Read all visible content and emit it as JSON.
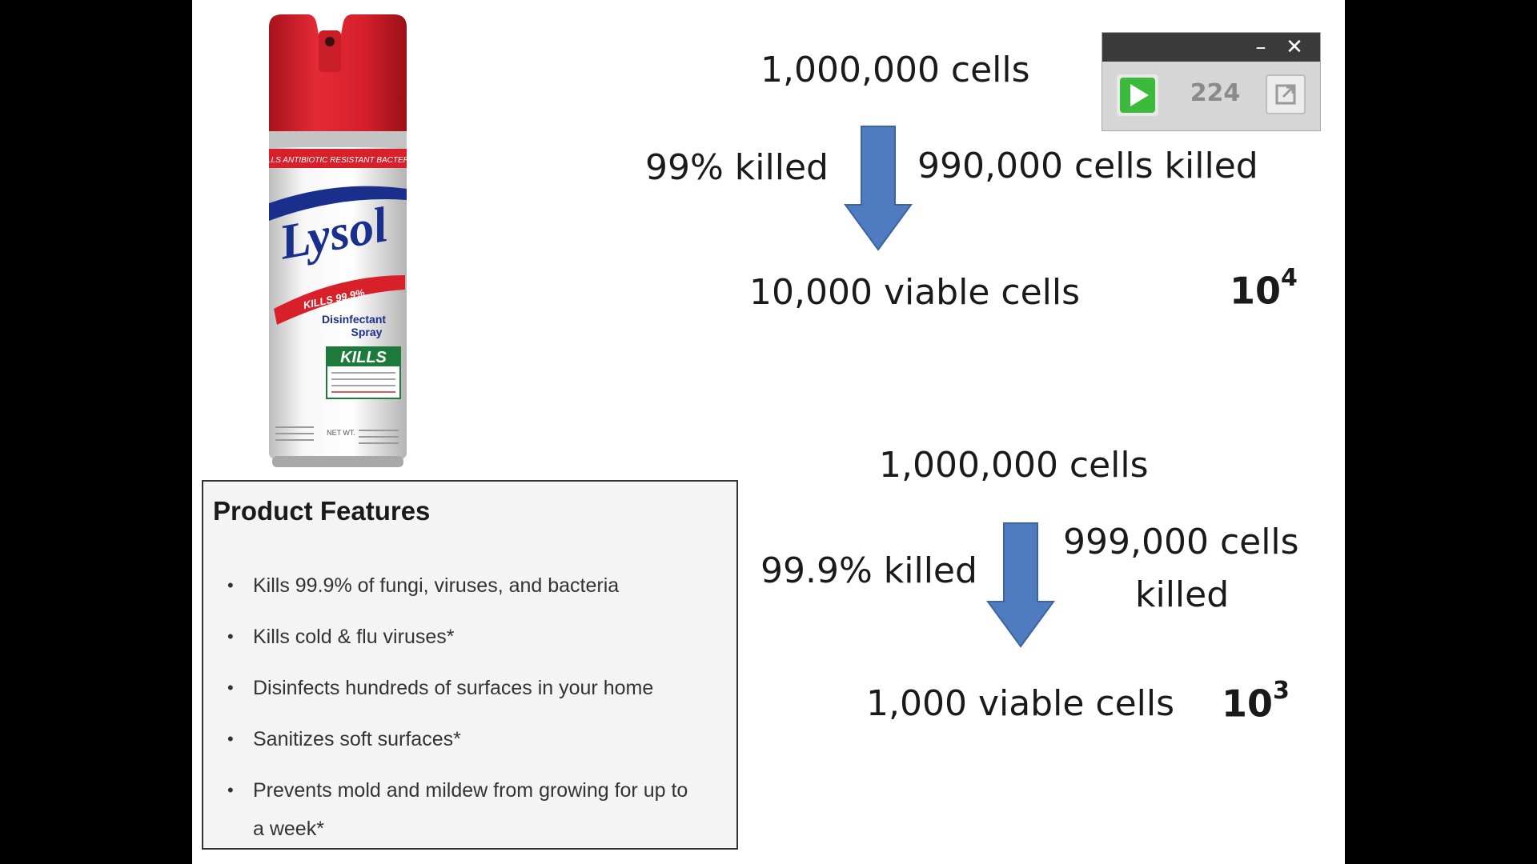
{
  "product": {
    "brand_logo": "Lysol",
    "can_band_text": "KILLS ANTIBIOTIC RESISTANT BACTERIA",
    "can_claim": "KILLS 99.9%",
    "can_product_name_line1": "Disinfectant",
    "can_product_name_line2": "Spray",
    "can_kills_label": "KILLS",
    "can_net_wt": "NET WT.",
    "colors": {
      "cap": "#d8202b",
      "logo_blue": "#1a2f8c",
      "kills_green": "#1c7a3a"
    }
  },
  "features": {
    "title": "Product Features",
    "items": [
      "Kills 99.9% of fungi, viruses, and bacteria",
      "Kills cold & flu viruses*",
      "Disinfects hundreds of surfaces in your home",
      "Sanitizes soft surfaces*",
      "Prevents mold and mildew from growing for up to a week*"
    ]
  },
  "example1": {
    "start": "1,000,000 cells",
    "kill_rate": "99% killed",
    "killed": "990,000 cells killed",
    "viable": "10,000 viable cells",
    "exp_base": "10",
    "exp_power": "4"
  },
  "example2": {
    "start": "1,000,000 cells",
    "kill_rate": "99.9% killed",
    "killed_line1": "999,000 cells",
    "killed_line2": "killed",
    "viable": "1,000 viable cells",
    "exp_base": "10",
    "exp_power": "3"
  },
  "mini_player": {
    "counter": "224",
    "minimize_icon": "minimize-icon",
    "close_icon": "close-icon",
    "play_icon": "play-icon",
    "expand_icon": "expand-icon"
  },
  "colors": {
    "arrow_blue": "#4f7cc0",
    "arrow_border": "#3d63a1"
  }
}
